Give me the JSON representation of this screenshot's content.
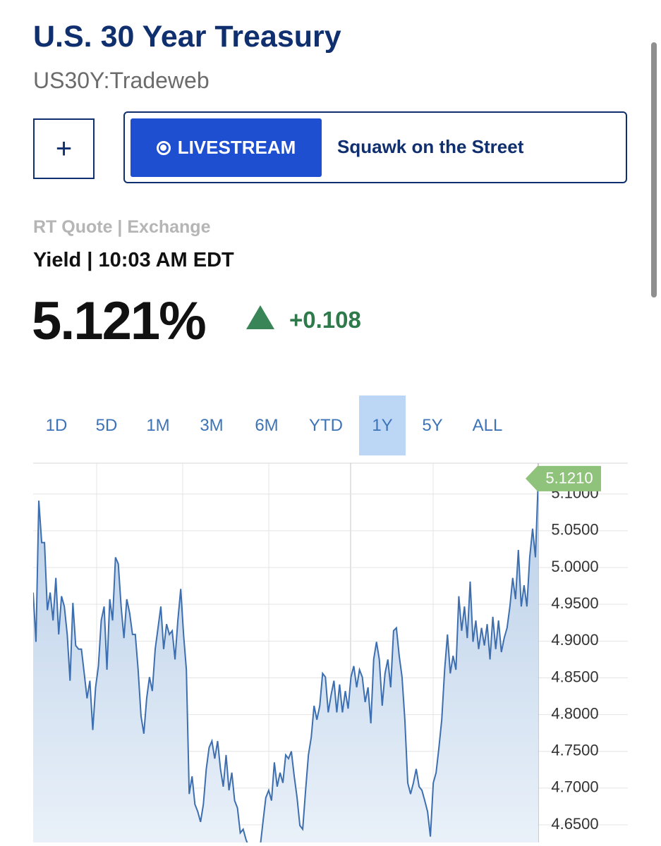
{
  "header": {
    "title": "U.S. 30 Year Treasury",
    "symbol": "US30Y:Tradeweb"
  },
  "actions": {
    "add": "+",
    "live": "LIVESTREAM",
    "show": "Squawk on the Street"
  },
  "quote": {
    "source": "RT Quote | Exchange",
    "time": "Yield | 10:03 AM EDT",
    "last": "5.121%",
    "change": "+0.108"
  },
  "ranges": [
    "1D",
    "5D",
    "1M",
    "3M",
    "6M",
    "YTD",
    "1Y",
    "5Y",
    "ALL"
  ],
  "active_range_index": 6,
  "chart_data": {
    "type": "area",
    "color": "#3d6fb0",
    "grid": true,
    "ylim": [
      4.626,
      5.142
    ],
    "yticks": [
      {
        "value": 4.65,
        "label": "4.6500"
      },
      {
        "value": 4.7,
        "label": "4.7000"
      },
      {
        "value": 4.75,
        "label": "4.7500"
      },
      {
        "value": 4.8,
        "label": "4.8000"
      },
      {
        "value": 4.85,
        "label": "4.8500"
      },
      {
        "value": 4.9,
        "label": "4.9000"
      },
      {
        "value": 4.95,
        "label": "4.9500"
      },
      {
        "value": 5.0,
        "label": "5.0000"
      },
      {
        "value": 5.05,
        "label": "5.0500"
      },
      {
        "value": 5.1,
        "label": "5.1000"
      }
    ],
    "last_value": {
      "value": 5.121,
      "label": "5.1210",
      "color": "#8fc27a"
    },
    "values": [
      4.966,
      4.899,
      5.091,
      5.034,
      5.034,
      4.942,
      4.966,
      4.928,
      4.986,
      4.909,
      4.961,
      4.947,
      4.909,
      4.846,
      4.952,
      4.894,
      4.889,
      4.889,
      4.856,
      4.822,
      4.846,
      4.779,
      4.837,
      4.866,
      4.928,
      4.947,
      4.861,
      4.957,
      4.928,
      5.014,
      5.005,
      4.947,
      4.904,
      4.957,
      4.938,
      4.909,
      4.909,
      4.861,
      4.798,
      4.774,
      4.822,
      4.851,
      4.832,
      4.889,
      4.918,
      4.947,
      4.889,
      4.923,
      4.909,
      4.914,
      4.875,
      4.928,
      4.971,
      4.909,
      4.861,
      4.692,
      4.716,
      4.678,
      4.668,
      4.654,
      4.678,
      4.726,
      4.755,
      4.764,
      4.74,
      4.764,
      4.726,
      4.702,
      4.745,
      4.697,
      4.721,
      4.683,
      4.673,
      4.639,
      4.644,
      4.63,
      4.62,
      4.62,
      4.62,
      4.62,
      4.62,
      4.654,
      4.687,
      4.697,
      4.683,
      4.735,
      4.702,
      4.721,
      4.707,
      4.745,
      4.74,
      4.75,
      4.716,
      4.687,
      4.649,
      4.644,
      4.697,
      4.745,
      4.769,
      4.812,
      4.793,
      4.812,
      4.856,
      4.851,
      4.803,
      4.827,
      4.846,
      4.803,
      4.841,
      4.803,
      4.832,
      4.808,
      4.851,
      4.866,
      4.837,
      4.861,
      4.851,
      4.817,
      4.837,
      4.788,
      4.875,
      4.899,
      4.875,
      4.812,
      4.856,
      4.875,
      4.837,
      4.914,
      4.918,
      4.88,
      4.851,
      4.793,
      4.707,
      4.692,
      4.707,
      4.726,
      4.702,
      4.697,
      4.683,
      4.668,
      4.634,
      4.707,
      4.721,
      4.755,
      4.793,
      4.861,
      4.909,
      4.856,
      4.88,
      4.861,
      4.961,
      4.914,
      4.947,
      4.904,
      4.981,
      4.899,
      4.928,
      4.889,
      4.918,
      4.894,
      4.923,
      4.875,
      4.933,
      4.889,
      4.928,
      4.885,
      4.904,
      4.918,
      4.947,
      4.986,
      4.957,
      5.024,
      4.947,
      4.976,
      4.947,
      5.014,
      5.053,
      5.014,
      5.121
    ]
  }
}
